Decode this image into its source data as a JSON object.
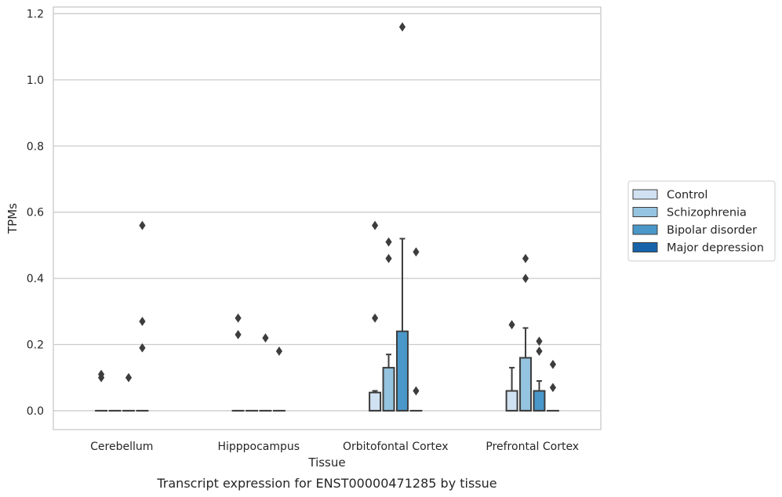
{
  "chart_data": {
    "type": "box",
    "caption": "Transcript expression for ENST00000471285 by tissue",
    "xlabel": "Tissue",
    "ylabel": "TPMs",
    "categories": [
      "Cerebellum",
      "Hipppocampus",
      "Orbitofontal Cortex",
      "Prefrontal Cortex"
    ],
    "yticks": [
      "0.0",
      "0.2",
      "0.4",
      "0.6",
      "0.8",
      "1.0",
      "1.2"
    ],
    "ylim": [
      -0.057,
      1.22
    ],
    "grid": "horizontal",
    "legend": "right",
    "series": [
      {
        "name": "Control",
        "color": "#d0e1f2",
        "boxes": [
          {
            "q1": 0,
            "median": 0,
            "q3": 0,
            "whisker_low": 0,
            "whisker_high": 0,
            "outliers": [
              0.11,
              0.1
            ]
          },
          {
            "q1": 0,
            "median": 0,
            "q3": 0,
            "whisker_low": 0,
            "whisker_high": 0,
            "outliers": [
              0.28,
              0.23
            ]
          },
          {
            "q1": 0,
            "median": 0,
            "q3": 0.055,
            "whisker_low": 0,
            "whisker_high": 0.06,
            "outliers": [
              0.56,
              0.28
            ]
          },
          {
            "q1": 0,
            "median": 0,
            "q3": 0.06,
            "whisker_low": 0,
            "whisker_high": 0.13,
            "outliers": [
              0.26
            ]
          }
        ]
      },
      {
        "name": "Schizophrenia",
        "color": "#94c4df",
        "boxes": [
          {
            "q1": 0,
            "median": 0,
            "q3": 0,
            "whisker_low": 0,
            "whisker_high": 0,
            "outliers": []
          },
          {
            "q1": 0,
            "median": 0,
            "q3": 0,
            "whisker_low": 0,
            "whisker_high": 0,
            "outliers": []
          },
          {
            "q1": 0,
            "median": 0,
            "q3": 0.13,
            "whisker_low": 0,
            "whisker_high": 0.17,
            "outliers": [
              0.51,
              0.46
            ]
          },
          {
            "q1": 0,
            "median": 0,
            "q3": 0.16,
            "whisker_low": 0,
            "whisker_high": 0.25,
            "outliers": [
              0.46,
              0.4
            ]
          }
        ]
      },
      {
        "name": "Bipolar disorder",
        "color": "#4a98c9",
        "boxes": [
          {
            "q1": 0,
            "median": 0,
            "q3": 0,
            "whisker_low": 0,
            "whisker_high": 0,
            "outliers": [
              0.1
            ]
          },
          {
            "q1": 0,
            "median": 0,
            "q3": 0,
            "whisker_low": 0,
            "whisker_high": 0,
            "outliers": [
              0.22
            ]
          },
          {
            "q1": 0,
            "median": 0,
            "q3": 0.24,
            "whisker_low": 0,
            "whisker_high": 0.52,
            "outliers": [
              1.16
            ]
          },
          {
            "q1": 0,
            "median": 0,
            "q3": 0.06,
            "whisker_low": 0,
            "whisker_high": 0.09,
            "outliers": [
              0.21,
              0.18
            ]
          }
        ]
      },
      {
        "name": "Major depression",
        "color": "#1764ab",
        "boxes": [
          {
            "q1": 0,
            "median": 0,
            "q3": 0,
            "whisker_low": 0,
            "whisker_high": 0,
            "outliers": [
              0.56,
              0.27,
              0.19
            ]
          },
          {
            "q1": 0,
            "median": 0,
            "q3": 0,
            "whisker_low": 0,
            "whisker_high": 0,
            "outliers": [
              0.18
            ]
          },
          {
            "q1": 0,
            "median": 0,
            "q3": 0,
            "whisker_low": 0,
            "whisker_high": 0,
            "outliers": [
              0.48,
              0.06
            ]
          },
          {
            "q1": 0,
            "median": 0,
            "q3": 0,
            "whisker_low": 0,
            "whisker_high": 0,
            "outliers": [
              0.14,
              0.07
            ]
          }
        ]
      }
    ]
  }
}
